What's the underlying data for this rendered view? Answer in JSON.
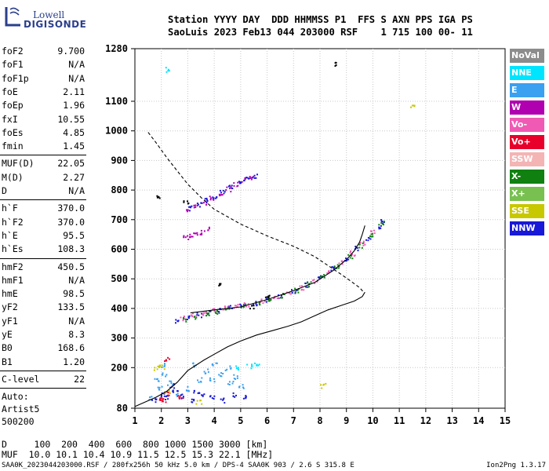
{
  "logo": {
    "line1": "Lowell",
    "line2": "DIGISONDE"
  },
  "header": {
    "line1": "Station YYYY DAY  DDD HHMMSS P1  FFS S AXN PPS IGA PS",
    "line2": "SaoLuis 2023 Feb13 044 203000 RSF    1 715 100 00- 11"
  },
  "params": {
    "group1": [
      {
        "name": "foF2",
        "value": "9.700"
      },
      {
        "name": "foF1",
        "value": "N/A"
      },
      {
        "name": "foF1p",
        "value": "N/A"
      },
      {
        "name": "foE",
        "value": "2.11"
      },
      {
        "name": "foEp",
        "value": "1.96"
      },
      {
        "name": "fxI",
        "value": "10.55"
      },
      {
        "name": "foEs",
        "value": "4.85"
      },
      {
        "name": "fmin",
        "value": "1.45"
      }
    ],
    "group2": [
      {
        "name": "MUF(D)",
        "value": "22.05"
      },
      {
        "name": "M(D)",
        "value": "2.27"
      },
      {
        "name": "D",
        "value": "N/A"
      }
    ],
    "group3": [
      {
        "name": "h`F",
        "value": "370.0"
      },
      {
        "name": "h`F2",
        "value": "370.0"
      },
      {
        "name": "h`E",
        "value": "95.5"
      },
      {
        "name": "h`Es",
        "value": "108.3"
      }
    ],
    "group4": [
      {
        "name": "hmF2",
        "value": "450.5"
      },
      {
        "name": "hmF1",
        "value": "N/A"
      },
      {
        "name": "hmE",
        "value": "98.5"
      },
      {
        "name": "yF2",
        "value": "133.5"
      },
      {
        "name": "yF1",
        "value": "N/A"
      },
      {
        "name": "yE",
        "value": "8.3"
      },
      {
        "name": "B0",
        "value": "168.6"
      },
      {
        "name": "B1",
        "value": "1.20"
      }
    ],
    "clevel": {
      "name": "C-level",
      "value": "22"
    },
    "auto": [
      "Auto:",
      "Artist5",
      "500200"
    ]
  },
  "legend": [
    {
      "label": "NoVal",
      "color": "#8c8c8c"
    },
    {
      "label": "NNE",
      "color": "#00e5ff"
    },
    {
      "label": "E",
      "color": "#3aa0f0"
    },
    {
      "label": "W",
      "color": "#b000b0"
    },
    {
      "label": "Vo-",
      "color": "#f05ab4"
    },
    {
      "label": "Vo+",
      "color": "#e8002a"
    },
    {
      "label": "SSW",
      "color": "#f4b4b4"
    },
    {
      "label": "X-",
      "color": "#108010"
    },
    {
      "label": "X+",
      "color": "#78c050"
    },
    {
      "label": "SSE",
      "color": "#c8c800"
    },
    {
      "label": "NNW",
      "color": "#1818d8"
    }
  ],
  "bottom": {
    "d_line": "D     100  200  400  600  800 1000 1500 3000 [km]",
    "muf_line": "MUF  10.0 10.1 10.4 10.9 11.5 12.5 15.3 22.1 [MHz]"
  },
  "footer": {
    "left": "SAA0K_2023044203000.RSF / 280fx256h 50 kHz 5.0 km / DPS-4 SAA0K 903 / 2.6 S 315.8 E",
    "right": "Ion2Png 1.3.17"
  },
  "chart_data": {
    "type": "scatter",
    "x_ticks": [
      "1",
      "2",
      "3",
      "4",
      "5",
      "6",
      "7",
      "8",
      "9",
      "10",
      "11",
      "12",
      "13",
      "14",
      "15"
    ],
    "y_ticks": [
      "80",
      "200",
      "300",
      "400",
      "500",
      "600",
      "700",
      "800",
      "900",
      "1000",
      "1100",
      "1280"
    ],
    "xlim": [
      1,
      15
    ],
    "ylim_note": "non-linear top: 1280 at top",
    "grid": true,
    "series": [
      {
        "kind": "echo",
        "color": "#1818d8",
        "points": [
          [
            2.6,
            360
          ],
          [
            3.0,
            370
          ],
          [
            3.4,
            380
          ],
          [
            3.8,
            390
          ],
          [
            4.2,
            398
          ],
          [
            4.6,
            405
          ],
          [
            5.0,
            412
          ],
          [
            5.5,
            420
          ],
          [
            6.0,
            432
          ],
          [
            6.5,
            445
          ],
          [
            7.0,
            460
          ],
          [
            7.5,
            480
          ],
          [
            8.0,
            505
          ],
          [
            8.5,
            535
          ],
          [
            9.0,
            570
          ],
          [
            9.4,
            605
          ],
          [
            9.8,
            640
          ],
          [
            10.2,
            680
          ],
          [
            10.3,
            695
          ]
        ]
      },
      {
        "kind": "echo",
        "color": "#f05ab4",
        "points": [
          [
            2.8,
            370
          ],
          [
            3.2,
            378
          ],
          [
            3.6,
            386
          ],
          [
            4.0,
            394
          ],
          [
            4.4,
            402
          ],
          [
            4.8,
            408
          ],
          [
            5.2,
            416
          ],
          [
            5.8,
            428
          ],
          [
            6.3,
            440
          ],
          [
            6.8,
            455
          ],
          [
            7.3,
            472
          ],
          [
            7.8,
            495
          ],
          [
            8.3,
            522
          ],
          [
            8.8,
            555
          ],
          [
            9.2,
            588
          ],
          [
            9.6,
            622
          ],
          [
            10.0,
            660
          ]
        ]
      },
      {
        "kind": "echo",
        "color": "#108010",
        "points": [
          [
            2.9,
            365
          ],
          [
            3.3,
            372
          ],
          [
            3.7,
            382
          ],
          [
            4.1,
            390
          ],
          [
            4.5,
            398
          ],
          [
            5.1,
            410
          ],
          [
            5.6,
            420
          ],
          [
            6.1,
            433
          ],
          [
            6.6,
            446
          ],
          [
            7.1,
            462
          ],
          [
            7.6,
            484
          ],
          [
            8.1,
            510
          ],
          [
            8.6,
            542
          ],
          [
            9.1,
            578
          ],
          [
            9.5,
            615
          ],
          [
            9.9,
            650
          ],
          [
            10.3,
            690
          ]
        ]
      },
      {
        "kind": "echo",
        "color": "#b000b0",
        "points": [
          [
            3.0,
            730
          ],
          [
            3.3,
            745
          ],
          [
            3.6,
            760
          ],
          [
            3.9,
            775
          ],
          [
            4.2,
            790
          ],
          [
            4.5,
            805
          ],
          [
            4.8,
            822
          ],
          [
            5.1,
            835
          ],
          [
            5.4,
            845
          ]
        ]
      },
      {
        "kind": "echo",
        "color": "#1818d8",
        "points": [
          [
            3.1,
            740
          ],
          [
            3.4,
            752
          ],
          [
            3.7,
            768
          ],
          [
            4.0,
            782
          ],
          [
            4.3,
            798
          ],
          [
            4.6,
            812
          ],
          [
            4.9,
            826
          ],
          [
            5.2,
            840
          ],
          [
            5.5,
            850
          ]
        ]
      },
      {
        "kind": "echo",
        "color": "#b000b0",
        "points": [
          [
            2.9,
            640
          ],
          [
            3.1,
            645
          ],
          [
            3.3,
            652
          ],
          [
            3.5,
            660
          ],
          [
            3.7,
            670
          ]
        ]
      },
      {
        "kind": "echo",
        "color": "#3aa0f0",
        "points": [
          [
            1.6,
            100
          ],
          [
            1.9,
            130
          ],
          [
            2.1,
            180
          ],
          [
            2.3,
            150
          ],
          [
            2.6,
            110
          ],
          [
            3.0,
            130
          ],
          [
            3.4,
            160
          ],
          [
            3.7,
            190
          ],
          [
            4.0,
            210
          ],
          [
            4.2,
            180
          ],
          [
            4.5,
            200
          ],
          [
            4.8,
            170
          ],
          [
            5.0,
            140
          ],
          [
            3.2,
            210
          ],
          [
            3.9,
            160
          ],
          [
            4.6,
            150
          ],
          [
            2.0,
            210
          ],
          [
            1.8,
            160
          ]
        ]
      },
      {
        "kind": "echo",
        "color": "#1818d8",
        "points": [
          [
            1.7,
            95
          ],
          [
            2.0,
            110
          ],
          [
            2.2,
            100
          ],
          [
            2.5,
            120
          ],
          [
            2.8,
            105
          ],
          [
            3.1,
            95
          ],
          [
            3.5,
            110
          ],
          [
            3.9,
            100
          ],
          [
            4.3,
            95
          ],
          [
            4.7,
            110
          ],
          [
            5.1,
            100
          ],
          [
            2.4,
            140
          ],
          [
            3.3,
            120
          ]
        ]
      },
      {
        "kind": "echo",
        "color": "#e8002a",
        "points": [
          [
            1.9,
            100
          ],
          [
            2.1,
            95
          ],
          [
            2.2,
            230
          ],
          [
            2.3,
            115
          ],
          [
            2.7,
            100
          ]
        ]
      },
      {
        "kind": "echo",
        "color": "#c8c800",
        "points": [
          [
            1.8,
            200
          ],
          [
            2.0,
            205
          ],
          [
            2.2,
            120
          ],
          [
            3.4,
            92
          ],
          [
            8.1,
            140
          ],
          [
            11.5,
            1085
          ]
        ]
      },
      {
        "kind": "echo",
        "color": "#00e5ff",
        "points": [
          [
            2.2,
            1210
          ],
          [
            4.9,
            200
          ],
          [
            5.3,
            205
          ],
          [
            5.6,
            210
          ]
        ]
      },
      {
        "kind": "echo",
        "color": "#000000",
        "points": [
          [
            8.6,
            1230
          ],
          [
            6.0,
            440
          ],
          [
            5.4,
            410
          ],
          [
            1.9,
            780
          ],
          [
            2.9,
            760
          ],
          [
            4.2,
            480
          ]
        ]
      }
    ],
    "curves": [
      {
        "kind": "virtual-height-trace",
        "style": "solid",
        "points": [
          [
            3.1,
            385
          ],
          [
            4.0,
            395
          ],
          [
            5.0,
            405
          ],
          [
            6.0,
            430
          ],
          [
            7.0,
            460
          ],
          [
            7.8,
            488
          ],
          [
            8.5,
            528
          ],
          [
            9.0,
            565
          ],
          [
            9.3,
            595
          ],
          [
            9.5,
            625
          ],
          [
            9.6,
            650
          ],
          [
            9.7,
            680
          ]
        ]
      },
      {
        "kind": "true-height-profile",
        "style": "solid",
        "points": [
          [
            1.0,
            83
          ],
          [
            1.8,
            100
          ],
          [
            2.2,
            120
          ],
          [
            2.6,
            150
          ],
          [
            3.0,
            190
          ],
          [
            3.6,
            225
          ],
          [
            4.0,
            245
          ],
          [
            4.5,
            270
          ],
          [
            5.0,
            290
          ],
          [
            5.6,
            310
          ],
          [
            6.2,
            325
          ],
          [
            6.8,
            340
          ],
          [
            7.3,
            355
          ],
          [
            7.8,
            375
          ],
          [
            8.3,
            395
          ],
          [
            8.8,
            410
          ],
          [
            9.3,
            425
          ],
          [
            9.6,
            440
          ],
          [
            9.7,
            455
          ]
        ]
      },
      {
        "kind": "model-profile",
        "style": "dashed",
        "points": [
          [
            1.5,
            995
          ],
          [
            1.8,
            960
          ],
          [
            2.2,
            910
          ],
          [
            2.6,
            865
          ],
          [
            3.0,
            820
          ],
          [
            3.5,
            775
          ],
          [
            4.0,
            735
          ],
          [
            4.5,
            710
          ],
          [
            5.0,
            685
          ],
          [
            6.0,
            645
          ],
          [
            7.0,
            610
          ],
          [
            7.8,
            575
          ],
          [
            8.3,
            545
          ],
          [
            8.8,
            515
          ],
          [
            9.2,
            490
          ],
          [
            9.5,
            470
          ],
          [
            9.65,
            455
          ]
        ]
      }
    ]
  }
}
